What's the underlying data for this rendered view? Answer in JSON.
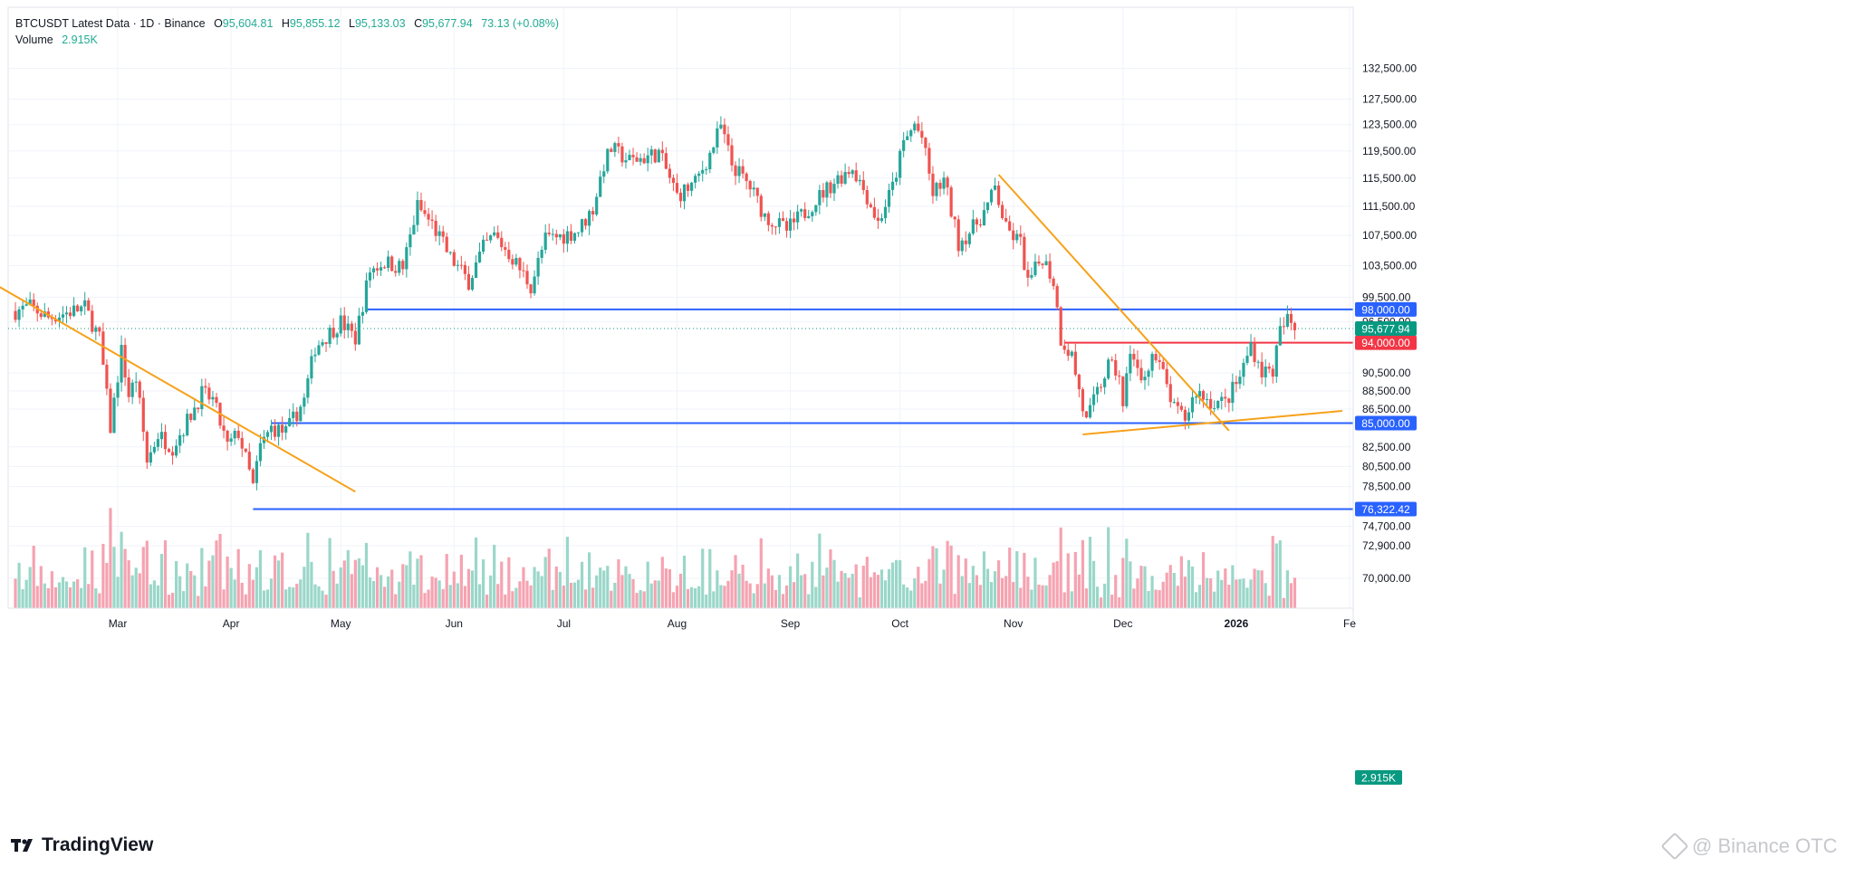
{
  "header": {
    "symbol_line": "BTCUSDT Latest Data · 1D · Binance",
    "ohlc": [
      {
        "label": "O",
        "value": "95,604.81"
      },
      {
        "label": "H",
        "value": "95,855.12"
      },
      {
        "label": "L",
        "value": "95,133.03"
      },
      {
        "label": "C",
        "value": "95,677.94"
      }
    ],
    "change": "73.13 (+0.08%)",
    "volume_label": "Volume",
    "volume_value": "2.915K"
  },
  "branding": {
    "logo_text": "TradingView",
    "watermark_text": "@ Binance OTC"
  },
  "colors": {
    "up": "#26a69a",
    "down": "#ef5350",
    "vol_up": "#9ad7c9",
    "vol_down": "#f5a3b1",
    "trendline": "#f7a11a",
    "support": "#2962ff",
    "resistance": "#f23645",
    "last_price": "#089981"
  },
  "chart_data": {
    "type": "candlestick",
    "symbol": "BTCUSDT",
    "interval": "1D",
    "exchange": "Binance",
    "x_ticks": [
      "Mar",
      "Apr",
      "May",
      "Jun",
      "Jul",
      "Aug",
      "Sep",
      "Oct",
      "Nov",
      "Dec",
      "2026",
      "Fe"
    ],
    "y_ticks": [
      "132,500.00",
      "127,500.00",
      "123,500.00",
      "119,500.00",
      "115,500.00",
      "111,500.00",
      "107,500.00",
      "103,500.00",
      "99,500.00",
      "96,500.00",
      "90,500.00",
      "88,500.00",
      "86,500.00",
      "82,500.00",
      "80,500.00",
      "78,500.00",
      "74,700.00",
      "72,900.00",
      "70,000.00"
    ],
    "ylim": [
      70000,
      135000
    ],
    "grid": true,
    "last_price": 95677.94,
    "last_price_label": "95,677.94",
    "volume_label": "2.915K",
    "horizontal_levels": [
      {
        "price": 98000,
        "label": "98,000.00",
        "color": "blue",
        "from": "2025-05-08"
      },
      {
        "price": 94000,
        "label": "94,000.00",
        "color": "red",
        "from": "2025-11-15"
      },
      {
        "price": 85000,
        "label": "85,000.00",
        "color": "blue",
        "from": "2025-04-12"
      },
      {
        "price": 76322.42,
        "label": "76,322.42",
        "color": "blue",
        "from": "2025-04-07"
      }
    ],
    "trendlines": [
      {
        "from": [
          "2025-01-25",
          101500
        ],
        "to": [
          "2025-05-05",
          78000
        ]
      },
      {
        "from": [
          "2025-10-28",
          116000
        ],
        "to": [
          "2025-12-30",
          84200
        ]
      },
      {
        "from": [
          "2025-11-20",
          83800
        ],
        "to": [
          "2026-01-30",
          86300
        ]
      }
    ],
    "close_path": [
      [
        "2025-02-01",
        97800
      ],
      [
        "2025-02-05",
        98300
      ],
      [
        "2025-02-10",
        97000
      ],
      [
        "2025-02-15",
        97600
      ],
      [
        "2025-02-20",
        98200
      ],
      [
        "2025-02-24",
        94500
      ],
      [
        "2025-02-27",
        84500
      ],
      [
        "2025-03-02",
        93000
      ],
      [
        "2025-03-04",
        88000
      ],
      [
        "2025-03-06",
        89900
      ],
      [
        "2025-03-09",
        81000
      ],
      [
        "2025-03-12",
        83800
      ],
      [
        "2025-03-16",
        82500
      ],
      [
        "2025-03-20",
        85200
      ],
      [
        "2025-03-24",
        88200
      ],
      [
        "2025-03-27",
        87500
      ],
      [
        "2025-03-31",
        82500
      ],
      [
        "2025-04-03",
        84000
      ],
      [
        "2025-04-07",
        78500
      ],
      [
        "2025-04-09",
        82500
      ],
      [
        "2025-04-12",
        84500
      ],
      [
        "2025-04-16",
        84000
      ],
      [
        "2025-04-21",
        87500
      ],
      [
        "2025-04-24",
        93500
      ],
      [
        "2025-05-01",
        96500
      ],
      [
        "2025-05-05",
        94500
      ],
      [
        "2025-05-09",
        102900
      ],
      [
        "2025-05-13",
        104000
      ],
      [
        "2025-05-18",
        103200
      ],
      [
        "2025-05-22",
        111500
      ],
      [
        "2025-05-26",
        109000
      ],
      [
        "2025-05-31",
        104500
      ],
      [
        "2025-06-05",
        101500
      ],
      [
        "2025-06-09",
        105800
      ],
      [
        "2025-06-12",
        107500
      ],
      [
        "2025-06-17",
        104500
      ],
      [
        "2025-06-22",
        100900
      ],
      [
        "2025-06-26",
        107000
      ],
      [
        "2025-07-01",
        107500
      ],
      [
        "2025-07-05",
        108200
      ],
      [
        "2025-07-09",
        111200
      ],
      [
        "2025-07-12",
        117500
      ],
      [
        "2025-07-14",
        119800
      ],
      [
        "2025-07-19",
        118000
      ],
      [
        "2025-07-23",
        118500
      ],
      [
        "2025-07-27",
        119200
      ],
      [
        "2025-08-01",
        113000
      ],
      [
        "2025-08-06",
        114800
      ],
      [
        "2025-08-10",
        119000
      ],
      [
        "2025-08-13",
        123200
      ],
      [
        "2025-08-16",
        117500
      ],
      [
        "2025-08-21",
        114200
      ],
      [
        "2025-08-25",
        110200
      ],
      [
        "2025-08-31",
        108200
      ],
      [
        "2025-09-05",
        110700
      ],
      [
        "2025-09-10",
        113500
      ],
      [
        "2025-09-14",
        115500
      ],
      [
        "2025-09-18",
        117100
      ],
      [
        "2025-09-22",
        112900
      ],
      [
        "2025-09-25",
        109200
      ],
      [
        "2025-09-29",
        114200
      ],
      [
        "2025-10-02",
        120600
      ],
      [
        "2025-10-05",
        123500
      ],
      [
        "2025-10-07",
        121500
      ],
      [
        "2025-10-10",
        113200
      ],
      [
        "2025-10-13",
        115200
      ],
      [
        "2025-10-17",
        106500
      ],
      [
        "2025-10-21",
        108500
      ],
      [
        "2025-10-25",
        111500
      ],
      [
        "2025-10-27",
        114100
      ],
      [
        "2025-10-30",
        108300
      ],
      [
        "2025-11-03",
        106500
      ],
      [
        "2025-11-05",
        101200
      ],
      [
        "2025-11-09",
        104700
      ],
      [
        "2025-11-12",
        101500
      ],
      [
        "2025-11-14",
        94500
      ],
      [
        "2025-11-17",
        92500
      ],
      [
        "2025-11-20",
        86600
      ],
      [
        "2025-11-21",
        85100
      ],
      [
        "2025-11-24",
        88300
      ],
      [
        "2025-11-27",
        91300
      ],
      [
        "2025-11-30",
        90400
      ],
      [
        "2025-12-01",
        86300
      ],
      [
        "2025-12-03",
        93400
      ],
      [
        "2025-12-06",
        89300
      ],
      [
        "2025-12-09",
        92700
      ],
      [
        "2025-12-12",
        90300
      ],
      [
        "2025-12-15",
        86400
      ],
      [
        "2025-12-18",
        85500
      ],
      [
        "2025-12-21",
        88500
      ],
      [
        "2025-12-25",
        87300
      ],
      [
        "2025-12-29",
        87200
      ],
      [
        "2026-01-02",
        90000
      ],
      [
        "2026-01-05",
        93800
      ],
      [
        "2026-01-08",
        90700
      ],
      [
        "2026-01-11",
        90800
      ],
      [
        "2026-01-13",
        95300
      ],
      [
        "2026-01-15",
        96700
      ],
      [
        "2026-01-17",
        95678
      ]
    ]
  }
}
